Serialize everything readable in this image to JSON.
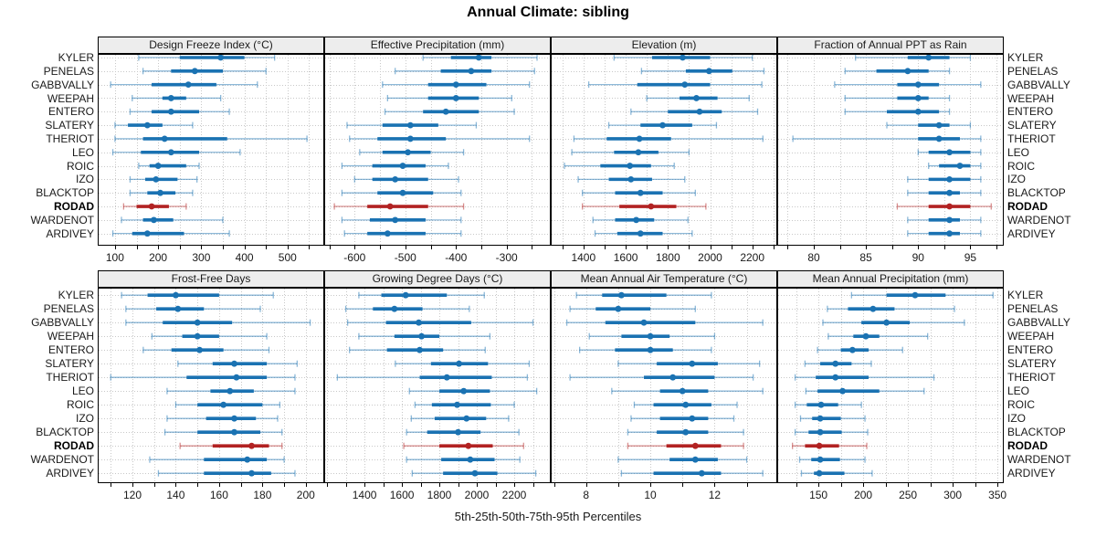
{
  "title": "Annual Climate: sibling",
  "caption": "5th-25th-50th-75th-95th Percentiles",
  "colors": {
    "series_blue": "#1a72b2",
    "highlight_red": "#b22222",
    "strip_bg": "#ededed",
    "grid_line": "#c8c8c8",
    "panel_border": "#000000",
    "text": "#1a1a1a"
  },
  "chart_data": {
    "type": "dot-interval",
    "note": "5th-25th-50th-75th-95th percentile intervals per site; thin line = 5-95, thick line = 25-75, dot = median",
    "percentiles": [
      5,
      25,
      50,
      75,
      95
    ],
    "sites": [
      "KYLER",
      "PENELAS",
      "GABBVALLY",
      "WEEPAH",
      "ENTERO",
      "SLATERY",
      "THERIOT",
      "LEO",
      "ROIC",
      "IZO",
      "BLACKTOP",
      "RODAD",
      "WARDENOT",
      "ARDIVEY"
    ],
    "highlight_site": "RODAD",
    "panels": [
      {
        "title": "Design Freeze Index (°C)",
        "grid_row": 0,
        "grid_col": 0,
        "xlim": [
          60,
          585
        ],
        "major_ticks": [
          100,
          200,
          300,
          400,
          500
        ],
        "minor_step": 50,
        "values": [
          [
            155,
            250,
            345,
            400,
            470
          ],
          [
            165,
            230,
            285,
            350,
            450
          ],
          [
            90,
            185,
            270,
            335,
            430
          ],
          [
            140,
            210,
            230,
            265,
            345
          ],
          [
            135,
            185,
            230,
            295,
            365
          ],
          [
            100,
            130,
            175,
            210,
            280
          ],
          [
            100,
            165,
            215,
            360,
            545
          ],
          [
            95,
            160,
            230,
            295,
            390
          ],
          [
            155,
            180,
            200,
            265,
            295
          ],
          [
            135,
            170,
            195,
            245,
            290
          ],
          [
            135,
            175,
            205,
            240,
            280
          ],
          [
            120,
            150,
            185,
            225,
            265
          ],
          [
            115,
            165,
            190,
            235,
            350
          ],
          [
            95,
            140,
            175,
            260,
            365
          ]
        ]
      },
      {
        "title": "Effective Precipitation (mm)",
        "grid_row": 0,
        "grid_col": 1,
        "xlim": [
          -660,
          -213
        ],
        "major_ticks": [
          -600,
          -500,
          -400,
          -300
        ],
        "minor_step": 50,
        "values": [
          [
            -465,
            -410,
            -355,
            -330,
            -240
          ],
          [
            -520,
            -430,
            -370,
            -330,
            -245
          ],
          [
            -545,
            -455,
            -400,
            -340,
            -255
          ],
          [
            -535,
            -455,
            -400,
            -355,
            -290
          ],
          [
            -540,
            -465,
            -420,
            -355,
            -285
          ],
          [
            -615,
            -545,
            -490,
            -435,
            -360
          ],
          [
            -610,
            -555,
            -490,
            -420,
            -255
          ],
          [
            -590,
            -545,
            -495,
            -450,
            -385
          ],
          [
            -625,
            -565,
            -505,
            -460,
            -415
          ],
          [
            -600,
            -565,
            -520,
            -455,
            -395
          ],
          [
            -625,
            -555,
            -505,
            -445,
            -390
          ],
          [
            -640,
            -575,
            -530,
            -455,
            -385
          ],
          [
            -625,
            -570,
            -520,
            -460,
            -390
          ],
          [
            -620,
            -575,
            -535,
            -460,
            -390
          ]
        ]
      },
      {
        "title": "Elevation (m)",
        "grid_row": 0,
        "grid_col": 2,
        "xlim": [
          1245,
          2318
        ],
        "major_ticks": [
          1400,
          1600,
          1800,
          2000,
          2200
        ],
        "minor_step": 100,
        "values": [
          [
            1545,
            1725,
            1870,
            2000,
            2200
          ],
          [
            1675,
            1885,
            1995,
            2105,
            2255
          ],
          [
            1425,
            1655,
            1880,
            2000,
            2245
          ],
          [
            1700,
            1855,
            1935,
            2035,
            2185
          ],
          [
            1625,
            1800,
            1950,
            2055,
            2225
          ],
          [
            1520,
            1670,
            1775,
            1915,
            2030
          ],
          [
            1355,
            1510,
            1665,
            1815,
            2250
          ],
          [
            1345,
            1545,
            1660,
            1755,
            1900
          ],
          [
            1310,
            1480,
            1620,
            1720,
            1830
          ],
          [
            1375,
            1520,
            1625,
            1725,
            1880
          ],
          [
            1395,
            1550,
            1670,
            1775,
            1930
          ],
          [
            1395,
            1570,
            1720,
            1840,
            1980
          ],
          [
            1445,
            1550,
            1650,
            1735,
            1895
          ],
          [
            1455,
            1560,
            1670,
            1775,
            1915
          ]
        ]
      },
      {
        "title": "Fraction of Annual PPT as Rain",
        "grid_row": 0,
        "grid_col": 3,
        "xlim": [
          76.5,
          98.2
        ],
        "major_ticks": [
          80,
          85,
          90,
          95
        ],
        "minor_step": 2.5,
        "values": [
          [
            84,
            89,
            91,
            93,
            95
          ],
          [
            83,
            86,
            89,
            91,
            93
          ],
          [
            82,
            88,
            90,
            92,
            96
          ],
          [
            83,
            88,
            90,
            91,
            93
          ],
          [
            83,
            87,
            90,
            92,
            93
          ],
          [
            87,
            90,
            92,
            93,
            95
          ],
          [
            78,
            90,
            92,
            94,
            96
          ],
          [
            90,
            91,
            93,
            95,
            96
          ],
          [
            91,
            92,
            94,
            95,
            96
          ],
          [
            89,
            91,
            93,
            95,
            96
          ],
          [
            89,
            91,
            93,
            94,
            96
          ],
          [
            88,
            91,
            93,
            95,
            97
          ],
          [
            89,
            91,
            93,
            94,
            96
          ],
          [
            89,
            91,
            93,
            94,
            96
          ]
        ]
      },
      {
        "title": "Frost-Free Days",
        "grid_row": 1,
        "grid_col": 0,
        "xlim": [
          104,
          208.5
        ],
        "major_ticks": [
          120,
          140,
          160,
          180,
          200
        ],
        "minor_step": 10,
        "values": [
          [
            115,
            127,
            140,
            160,
            185
          ],
          [
            117,
            131,
            141,
            153,
            179
          ],
          [
            117,
            134,
            150,
            166,
            202
          ],
          [
            129,
            143,
            150,
            160,
            182
          ],
          [
            125,
            138,
            151,
            162,
            183
          ],
          [
            141,
            157,
            167,
            182,
            196
          ],
          [
            110,
            145,
            168,
            182,
            195
          ],
          [
            136,
            156,
            165,
            176,
            195
          ],
          [
            140,
            150,
            162,
            180,
            188
          ],
          [
            136,
            154,
            167,
            177,
            187
          ],
          [
            135,
            150,
            167,
            179,
            189
          ],
          [
            142,
            157,
            175,
            183,
            189
          ],
          [
            128,
            153,
            173,
            182,
            190
          ],
          [
            132,
            153,
            175,
            184,
            195
          ]
        ]
      },
      {
        "title": "Growing Degree Days (°C)",
        "grid_row": 1,
        "grid_col": 1,
        "xlim": [
          1185,
          2395
        ],
        "major_ticks": [
          1400,
          1600,
          1800,
          2000,
          2200
        ],
        "minor_step": 100,
        "values": [
          [
            1370,
            1490,
            1620,
            1840,
            2040
          ],
          [
            1300,
            1445,
            1560,
            1710,
            1960
          ],
          [
            1310,
            1515,
            1690,
            1970,
            2300
          ],
          [
            1370,
            1560,
            1705,
            1800,
            2070
          ],
          [
            1320,
            1520,
            1695,
            1820,
            2045
          ],
          [
            1565,
            1755,
            1905,
            2060,
            2280
          ],
          [
            1255,
            1695,
            1840,
            2080,
            2270
          ],
          [
            1640,
            1800,
            1930,
            2070,
            2320
          ],
          [
            1670,
            1760,
            1895,
            2075,
            2200
          ],
          [
            1650,
            1775,
            1945,
            2050,
            2170
          ],
          [
            1625,
            1735,
            1900,
            2020,
            2225
          ],
          [
            1610,
            1800,
            1955,
            2085,
            2250
          ],
          [
            1625,
            1810,
            1965,
            2095,
            2230
          ],
          [
            1655,
            1820,
            1990,
            2110,
            2315
          ]
        ]
      },
      {
        "title": "Mean Annual Air Temperature (°C)",
        "grid_row": 1,
        "grid_col": 2,
        "xlim": [
          6.9,
          13.95
        ],
        "major_ticks": [
          8,
          10,
          12
        ],
        "minor_step": 1,
        "values": [
          [
            7.7,
            8.5,
            9.1,
            10.5,
            11.9
          ],
          [
            7.5,
            8.3,
            9.0,
            10.0,
            11.4
          ],
          [
            7.4,
            8.6,
            9.8,
            11.4,
            13.5
          ],
          [
            8.1,
            9.1,
            10.0,
            10.6,
            12.0
          ],
          [
            7.8,
            8.9,
            10.0,
            10.7,
            11.9
          ],
          [
            9.0,
            10.2,
            11.3,
            12.1,
            13.4
          ],
          [
            7.5,
            9.8,
            10.7,
            12.0,
            13.2
          ],
          [
            8.8,
            10.3,
            11.0,
            11.8,
            13.5
          ],
          [
            9.5,
            10.1,
            11.1,
            11.9,
            12.7
          ],
          [
            9.4,
            10.3,
            11.3,
            11.8,
            12.6
          ],
          [
            9.3,
            10.2,
            11.1,
            11.8,
            12.9
          ],
          [
            9.3,
            10.5,
            11.4,
            12.2,
            12.9
          ],
          [
            9.0,
            10.6,
            11.4,
            12.1,
            13.0
          ],
          [
            9.1,
            10.1,
            11.6,
            12.2,
            13.5
          ]
        ]
      },
      {
        "title": "Mean Annual Precipitation (mm)",
        "grid_row": 1,
        "grid_col": 3,
        "xlim": [
          104,
          357
        ],
        "major_ticks": [
          150,
          200,
          250,
          300,
          350
        ],
        "minor_step": 25,
        "values": [
          [
            187,
            226,
            258,
            292,
            345
          ],
          [
            160,
            183,
            211,
            235,
            302
          ],
          [
            155,
            198,
            226,
            252,
            313
          ],
          [
            161,
            189,
            203,
            218,
            272
          ],
          [
            149,
            175,
            188,
            206,
            244
          ],
          [
            135,
            152,
            169,
            187,
            209
          ],
          [
            124,
            147,
            169,
            206,
            279
          ],
          [
            136,
            149,
            177,
            218,
            268
          ],
          [
            124,
            137,
            153,
            172,
            198
          ],
          [
            130,
            143,
            152,
            175,
            202
          ],
          [
            124,
            139,
            152,
            176,
            205
          ],
          [
            121,
            135,
            151,
            173,
            204
          ],
          [
            129,
            142,
            152,
            174,
            202
          ],
          [
            131,
            145,
            151,
            179,
            210
          ]
        ]
      }
    ]
  }
}
